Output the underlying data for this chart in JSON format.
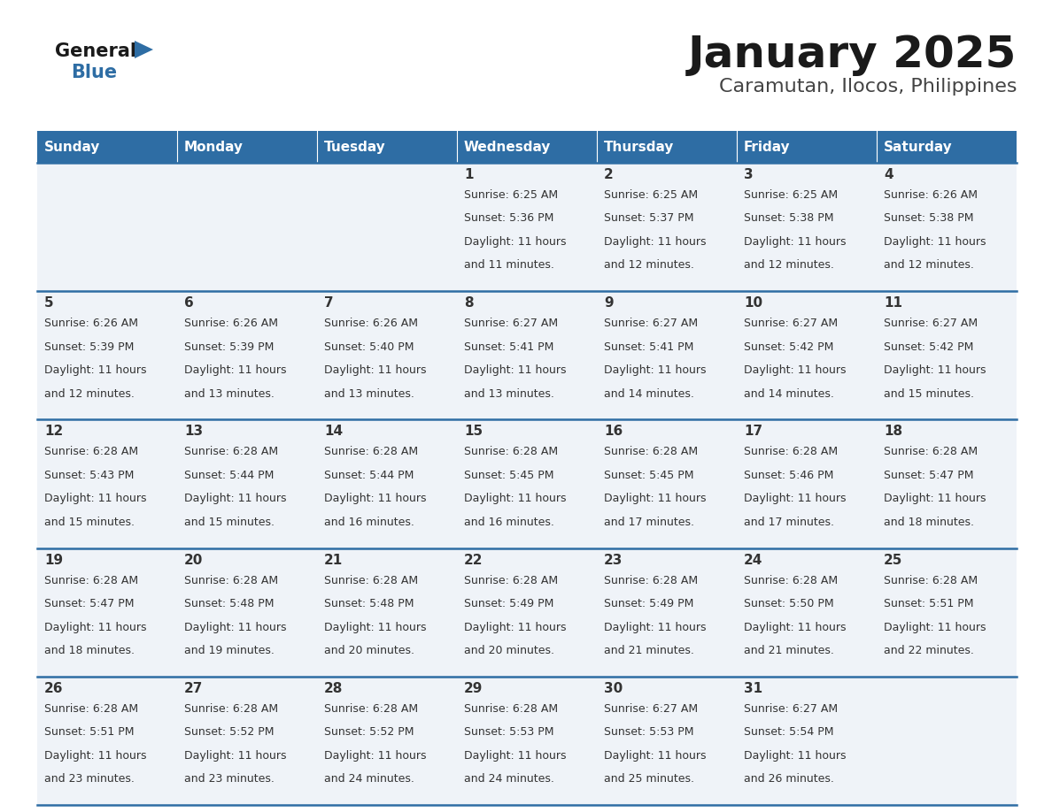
{
  "title": "January 2025",
  "subtitle": "Caramutan, Ilocos, Philippines",
  "days_of_week": [
    "Sunday",
    "Monday",
    "Tuesday",
    "Wednesday",
    "Thursday",
    "Friday",
    "Saturday"
  ],
  "header_bg": "#2e6da4",
  "header_text": "#ffffff",
  "cell_bg": "#eff3f8",
  "divider_color": "#2e6da4",
  "text_color": "#333333",
  "title_color": "#1a1a1a",
  "subtitle_color": "#444444",
  "logo_general_color": "#1a1a1a",
  "logo_blue_color": "#2e6da4",
  "logo_triangle_color": "#2e6da4",
  "calendar_data": [
    [
      {
        "day": null,
        "sunrise": null,
        "sunset": null,
        "daylight": null
      },
      {
        "day": null,
        "sunrise": null,
        "sunset": null,
        "daylight": null
      },
      {
        "day": null,
        "sunrise": null,
        "sunset": null,
        "daylight": null
      },
      {
        "day": 1,
        "sunrise": "6:25 AM",
        "sunset": "5:36 PM",
        "daylight": "11 hours and 11 minutes."
      },
      {
        "day": 2,
        "sunrise": "6:25 AM",
        "sunset": "5:37 PM",
        "daylight": "11 hours and 12 minutes."
      },
      {
        "day": 3,
        "sunrise": "6:25 AM",
        "sunset": "5:38 PM",
        "daylight": "11 hours and 12 minutes."
      },
      {
        "day": 4,
        "sunrise": "6:26 AM",
        "sunset": "5:38 PM",
        "daylight": "11 hours and 12 minutes."
      }
    ],
    [
      {
        "day": 5,
        "sunrise": "6:26 AM",
        "sunset": "5:39 PM",
        "daylight": "11 hours and 12 minutes."
      },
      {
        "day": 6,
        "sunrise": "6:26 AM",
        "sunset": "5:39 PM",
        "daylight": "11 hours and 13 minutes."
      },
      {
        "day": 7,
        "sunrise": "6:26 AM",
        "sunset": "5:40 PM",
        "daylight": "11 hours and 13 minutes."
      },
      {
        "day": 8,
        "sunrise": "6:27 AM",
        "sunset": "5:41 PM",
        "daylight": "11 hours and 13 minutes."
      },
      {
        "day": 9,
        "sunrise": "6:27 AM",
        "sunset": "5:41 PM",
        "daylight": "11 hours and 14 minutes."
      },
      {
        "day": 10,
        "sunrise": "6:27 AM",
        "sunset": "5:42 PM",
        "daylight": "11 hours and 14 minutes."
      },
      {
        "day": 11,
        "sunrise": "6:27 AM",
        "sunset": "5:42 PM",
        "daylight": "11 hours and 15 minutes."
      }
    ],
    [
      {
        "day": 12,
        "sunrise": "6:28 AM",
        "sunset": "5:43 PM",
        "daylight": "11 hours and 15 minutes."
      },
      {
        "day": 13,
        "sunrise": "6:28 AM",
        "sunset": "5:44 PM",
        "daylight": "11 hours and 15 minutes."
      },
      {
        "day": 14,
        "sunrise": "6:28 AM",
        "sunset": "5:44 PM",
        "daylight": "11 hours and 16 minutes."
      },
      {
        "day": 15,
        "sunrise": "6:28 AM",
        "sunset": "5:45 PM",
        "daylight": "11 hours and 16 minutes."
      },
      {
        "day": 16,
        "sunrise": "6:28 AM",
        "sunset": "5:45 PM",
        "daylight": "11 hours and 17 minutes."
      },
      {
        "day": 17,
        "sunrise": "6:28 AM",
        "sunset": "5:46 PM",
        "daylight": "11 hours and 17 minutes."
      },
      {
        "day": 18,
        "sunrise": "6:28 AM",
        "sunset": "5:47 PM",
        "daylight": "11 hours and 18 minutes."
      }
    ],
    [
      {
        "day": 19,
        "sunrise": "6:28 AM",
        "sunset": "5:47 PM",
        "daylight": "11 hours and 18 minutes."
      },
      {
        "day": 20,
        "sunrise": "6:28 AM",
        "sunset": "5:48 PM",
        "daylight": "11 hours and 19 minutes."
      },
      {
        "day": 21,
        "sunrise": "6:28 AM",
        "sunset": "5:48 PM",
        "daylight": "11 hours and 20 minutes."
      },
      {
        "day": 22,
        "sunrise": "6:28 AM",
        "sunset": "5:49 PM",
        "daylight": "11 hours and 20 minutes."
      },
      {
        "day": 23,
        "sunrise": "6:28 AM",
        "sunset": "5:49 PM",
        "daylight": "11 hours and 21 minutes."
      },
      {
        "day": 24,
        "sunrise": "6:28 AM",
        "sunset": "5:50 PM",
        "daylight": "11 hours and 21 minutes."
      },
      {
        "day": 25,
        "sunrise": "6:28 AM",
        "sunset": "5:51 PM",
        "daylight": "11 hours and 22 minutes."
      }
    ],
    [
      {
        "day": 26,
        "sunrise": "6:28 AM",
        "sunset": "5:51 PM",
        "daylight": "11 hours and 23 minutes."
      },
      {
        "day": 27,
        "sunrise": "6:28 AM",
        "sunset": "5:52 PM",
        "daylight": "11 hours and 23 minutes."
      },
      {
        "day": 28,
        "sunrise": "6:28 AM",
        "sunset": "5:52 PM",
        "daylight": "11 hours and 24 minutes."
      },
      {
        "day": 29,
        "sunrise": "6:28 AM",
        "sunset": "5:53 PM",
        "daylight": "11 hours and 24 minutes."
      },
      {
        "day": 30,
        "sunrise": "6:27 AM",
        "sunset": "5:53 PM",
        "daylight": "11 hours and 25 minutes."
      },
      {
        "day": 31,
        "sunrise": "6:27 AM",
        "sunset": "5:54 PM",
        "daylight": "11 hours and 26 minutes."
      },
      {
        "day": null,
        "sunrise": null,
        "sunset": null,
        "daylight": null
      }
    ]
  ]
}
